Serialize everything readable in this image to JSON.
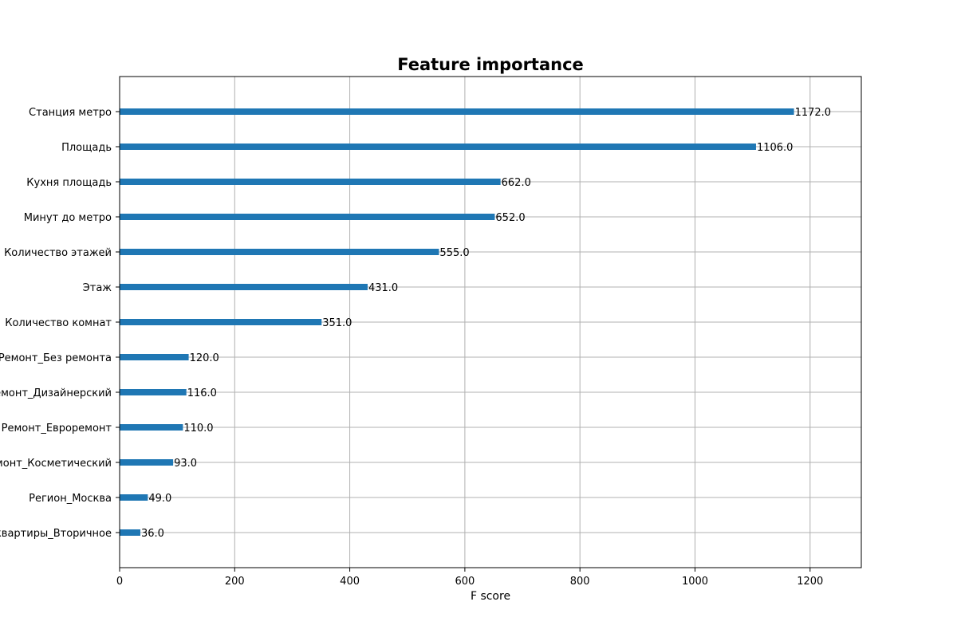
{
  "chart_data": {
    "type": "bar",
    "orientation": "horizontal",
    "title": "Feature importance",
    "xlabel": "F score",
    "ylabel": "",
    "xlim": [
      0,
      1289
    ],
    "x_ticks": [
      0,
      200,
      400,
      600,
      800,
      1000,
      1200
    ],
    "x_tick_labels": [
      "0",
      "200",
      "400",
      "600",
      "800",
      "1000",
      "1200"
    ],
    "grid": true,
    "bar_color": "#1f77b4",
    "grid_color": "#b0b0b0",
    "categories": [
      "Станция метро",
      "Площадь",
      "Кухня площадь",
      "Минут до метро",
      "Количество этажей",
      "Этаж",
      "Количество комнат",
      "Ремонт_Без ремонта",
      "Ремонт_Дизайнерский",
      "Ремонт_Евроремонт",
      "Ремонт_Косметический",
      "Регион_Москва",
      "Тип квартиры_Вторичное"
    ],
    "values": [
      1172.0,
      1106.0,
      662.0,
      652.0,
      555.0,
      431.0,
      351.0,
      120.0,
      116.0,
      110.0,
      93.0,
      49.0,
      36.0
    ],
    "value_labels": [
      "1172.0",
      "1106.0",
      "662.0",
      "652.0",
      "555.0",
      "431.0",
      "351.0",
      "120.0",
      "116.0",
      "110.0",
      "93.0",
      "49.0",
      "36.0"
    ]
  }
}
